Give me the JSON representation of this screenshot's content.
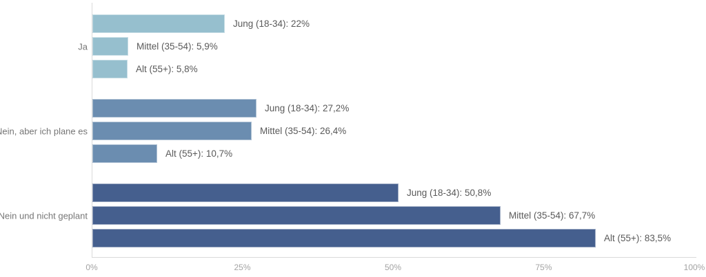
{
  "chart_data": {
    "type": "bar",
    "orientation": "horizontal",
    "title": "",
    "xlabel": "",
    "ylabel": "",
    "xlim": [
      0,
      100
    ],
    "grid": false,
    "legend": "none",
    "x_ticks": [
      "0%",
      "25%",
      "50%",
      "75%",
      "100%"
    ],
    "x_tick_values": [
      0,
      25,
      50,
      75,
      100
    ],
    "categories": [
      "Ja",
      "Nein, aber ich plane es",
      "Nein und nicht geplant"
    ],
    "series": [
      {
        "name": "Jung (18-34)",
        "values": [
          22,
          27.2,
          50.8
        ]
      },
      {
        "name": "Mittel (35-54)",
        "values": [
          5.9,
          26.4,
          67.7
        ]
      },
      {
        "name": "Alt (55+)",
        "values": [
          5.8,
          10.7,
          83.5
        ]
      }
    ],
    "groups": [
      {
        "label": "Ja",
        "color": "#96bfce",
        "bars": [
          {
            "name": "Jung (18-34)",
            "value": 22,
            "label": "Jung (18-34): 22%"
          },
          {
            "name": "Mittel (35-54)",
            "value": 5.9,
            "label": "Mittel (35-54): 5,9%"
          },
          {
            "name": "Alt (55+)",
            "value": 5.8,
            "label": "Alt (55+): 5,8%"
          }
        ]
      },
      {
        "label": "Nein, aber ich plane es",
        "color": "#6b8db0",
        "bars": [
          {
            "name": "Jung (18-34)",
            "value": 27.2,
            "label": "Jung (18-34): 27,2%"
          },
          {
            "name": "Mittel (35-54)",
            "value": 26.4,
            "label": "Mittel (35-54): 26,4%"
          },
          {
            "name": "Alt (55+)",
            "value": 10.7,
            "label": "Alt (55+): 10,7%"
          }
        ]
      },
      {
        "label": "Nein und nicht geplant",
        "color": "#455f8e",
        "bars": [
          {
            "name": "Jung (18-34)",
            "value": 50.8,
            "label": "Jung (18-34): 50,8%"
          },
          {
            "name": "Mittel (35-54)",
            "value": 67.7,
            "label": "Mittel (35-54): 67,7%"
          },
          {
            "name": "Alt (55+)",
            "value": 83.5,
            "label": "Alt (55+): 83,5%"
          }
        ]
      }
    ],
    "colors": {
      "axis_line": "#d9d9d9",
      "tick_label": "#a3a3a3",
      "category_label": "#767676",
      "data_label": "#595959"
    }
  }
}
